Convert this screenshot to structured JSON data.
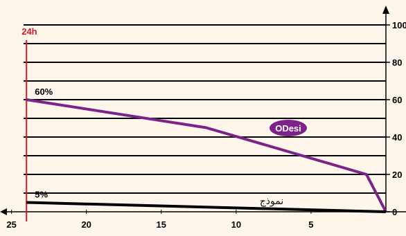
{
  "colors": {
    "background": "#fef6ea",
    "grid": "#000000",
    "marker_line": "#d11a2a",
    "odesi_line": "#7b2388",
    "model_line": "#000000",
    "badge": "#7b2388"
  },
  "chart_data": {
    "type": "line",
    "x_axis": {
      "reversed": true,
      "range": [
        0,
        26
      ],
      "ticks": [
        25,
        20,
        15,
        10,
        5
      ]
    },
    "y_axis": {
      "position": "right",
      "range": [
        0,
        100
      ],
      "ticks": [
        0,
        20,
        40,
        60,
        80,
        100
      ],
      "tick_labels": [
        "0",
        "20",
        "40",
        "60",
        "80",
        "100"
      ]
    },
    "grid": true,
    "gridlines_y": [
      10,
      20,
      30,
      40,
      50,
      60,
      70,
      80,
      90,
      100
    ],
    "vertical_marker": {
      "x": 24,
      "label": "24h"
    },
    "series": [
      {
        "name": "ODesi",
        "x": [
          24,
          12,
          1.3,
          0
        ],
        "y": [
          60,
          45,
          20,
          0
        ]
      },
      {
        "name": "نموذج",
        "x": [
          24,
          0
        ],
        "y": [
          5,
          0
        ]
      }
    ],
    "annotations": [
      {
        "text": "60%",
        "x": 24,
        "y": 60
      },
      {
        "text": "5%",
        "x": 24,
        "y": 5
      }
    ]
  }
}
